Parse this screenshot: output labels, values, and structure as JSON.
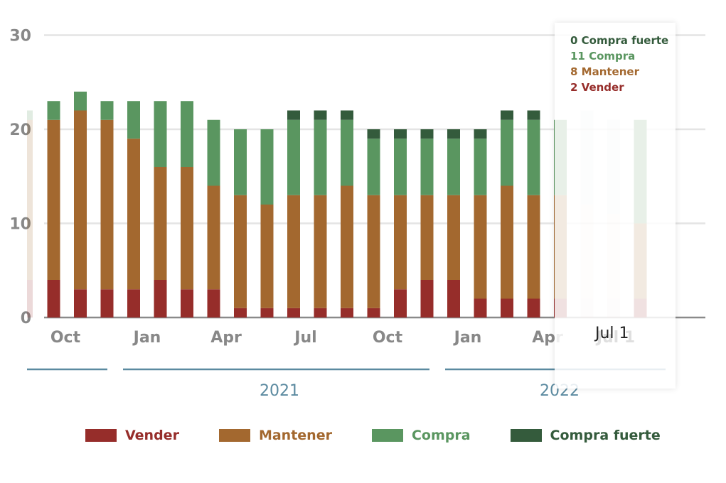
{
  "chart_data": {
    "type": "bar",
    "stacked": true,
    "ylim": [
      0,
      30
    ],
    "y_ticks": [
      "30",
      "20",
      "10",
      "0"
    ],
    "x_tick_labels": [
      "Oct",
      "Jan",
      "Apr",
      "Jul",
      "Oct",
      "Jan",
      "Apr",
      "Jul 1"
    ],
    "year_labels": [
      "2021",
      "2022"
    ],
    "grid": true,
    "legend_placement": "bottom",
    "colors": {
      "Vender": "#962d2a",
      "Mantener": "#a3682f",
      "Compra": "#5a9660",
      "Compra fuerte": "#345b3c"
    },
    "categories": [
      "2020-09",
      "2020-10",
      "2020-11",
      "2020-12",
      "2021-01",
      "2021-02",
      "2021-03",
      "2021-04",
      "2021-05",
      "2021-06",
      "2021-07",
      "2021-08",
      "2021-09",
      "2021-10",
      "2021-11",
      "2021-12",
      "2022-01",
      "2022-02",
      "2022-03",
      "2022-04",
      "2022-05",
      "2022-06",
      "2022-07"
    ],
    "series": [
      {
        "name": "Vender",
        "values": [
          4,
          3,
          3,
          3,
          4,
          3,
          3,
          1,
          1,
          1,
          1,
          1,
          1,
          3,
          4,
          4,
          2,
          2,
          2,
          2,
          2,
          2,
          2
        ]
      },
      {
        "name": "Mantener",
        "values": [
          17,
          19,
          18,
          16,
          12,
          13,
          11,
          12,
          11,
          12,
          12,
          13,
          12,
          10,
          9,
          9,
          11,
          12,
          11,
          11,
          10,
          9,
          8
        ]
      },
      {
        "name": "Compra",
        "values": [
          2,
          2,
          2,
          4,
          7,
          7,
          7,
          7,
          8,
          8,
          8,
          7,
          6,
          6,
          6,
          6,
          6,
          7,
          8,
          8,
          10,
          10,
          11
        ]
      },
      {
        "name": "Compra fuerte",
        "values": [
          0,
          0,
          0,
          0,
          0,
          0,
          0,
          0,
          0,
          1,
          1,
          1,
          1,
          1,
          1,
          1,
          1,
          1,
          1,
          0,
          0,
          0,
          0
        ]
      }
    ],
    "highlighted_index": 22
  },
  "tooltip": {
    "lines": [
      {
        "text": "0 Compra fuerte",
        "color": "#345b3c"
      },
      {
        "text": "11 Compra",
        "color": "#5a9660"
      },
      {
        "text": "8 Mantener",
        "color": "#a3682f"
      },
      {
        "text": "2 Vender",
        "color": "#962d2a"
      }
    ],
    "date": "Jul 1"
  },
  "legend": [
    {
      "label": "Vender",
      "color": "#962d2a"
    },
    {
      "label": "Mantener",
      "color": "#a3682f"
    },
    {
      "label": "Compra",
      "color": "#5a9660"
    },
    {
      "label": "Compra fuerte",
      "color": "#345b3c"
    }
  ]
}
